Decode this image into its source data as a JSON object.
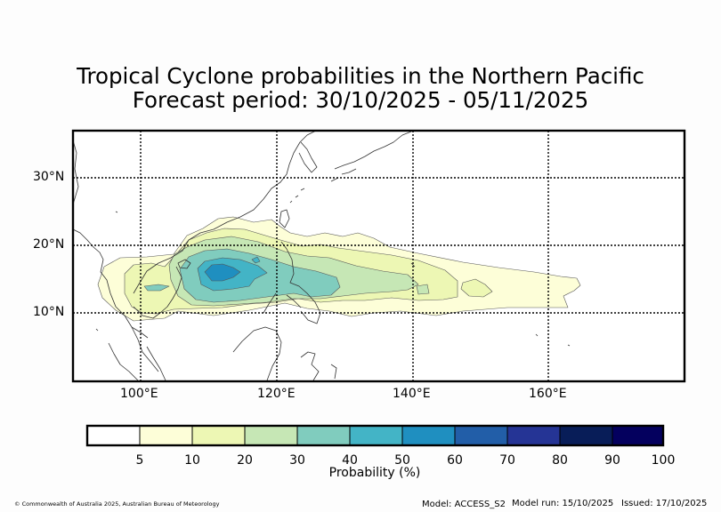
{
  "title": {
    "line1": "Tropical Cyclone probabilities in the Northern Pacific",
    "line2": "Forecast period: 30/10/2025 - 05/11/2025"
  },
  "map": {
    "lon_range": [
      90,
      180
    ],
    "lat_range": [
      0,
      37
    ],
    "lon_ticks": [
      {
        "value": 100,
        "label": "100°E"
      },
      {
        "value": 120,
        "label": "120°E"
      },
      {
        "value": 140,
        "label": "140°E"
      },
      {
        "value": 160,
        "label": "160°E"
      }
    ],
    "lat_ticks": [
      {
        "value": 30,
        "label": "30°N"
      },
      {
        "value": 20,
        "label": "20°N"
      },
      {
        "value": 10,
        "label": "10°N"
      }
    ]
  },
  "colorbar": {
    "title": "Probability (%)",
    "tick_labels": [
      "5",
      "10",
      "20",
      "30",
      "40",
      "50",
      "60",
      "70",
      "80",
      "90",
      "100"
    ],
    "colors": [
      "#ffffff",
      "#fdfed8",
      "#edf7b4",
      "#c6e7b5",
      "#80ccbe",
      "#43b4c6",
      "#1f8fc0",
      "#225ea8",
      "#253495",
      "#081d58",
      "#04005e"
    ]
  },
  "footer": {
    "copyright": "© Commonwealth of Australia 2025, Australian Bureau of Meteorology",
    "model": "Model: ACCESS_S2",
    "model_run": "Model run: 15/10/2025",
    "issued": "Issued: 17/10/2025"
  }
}
